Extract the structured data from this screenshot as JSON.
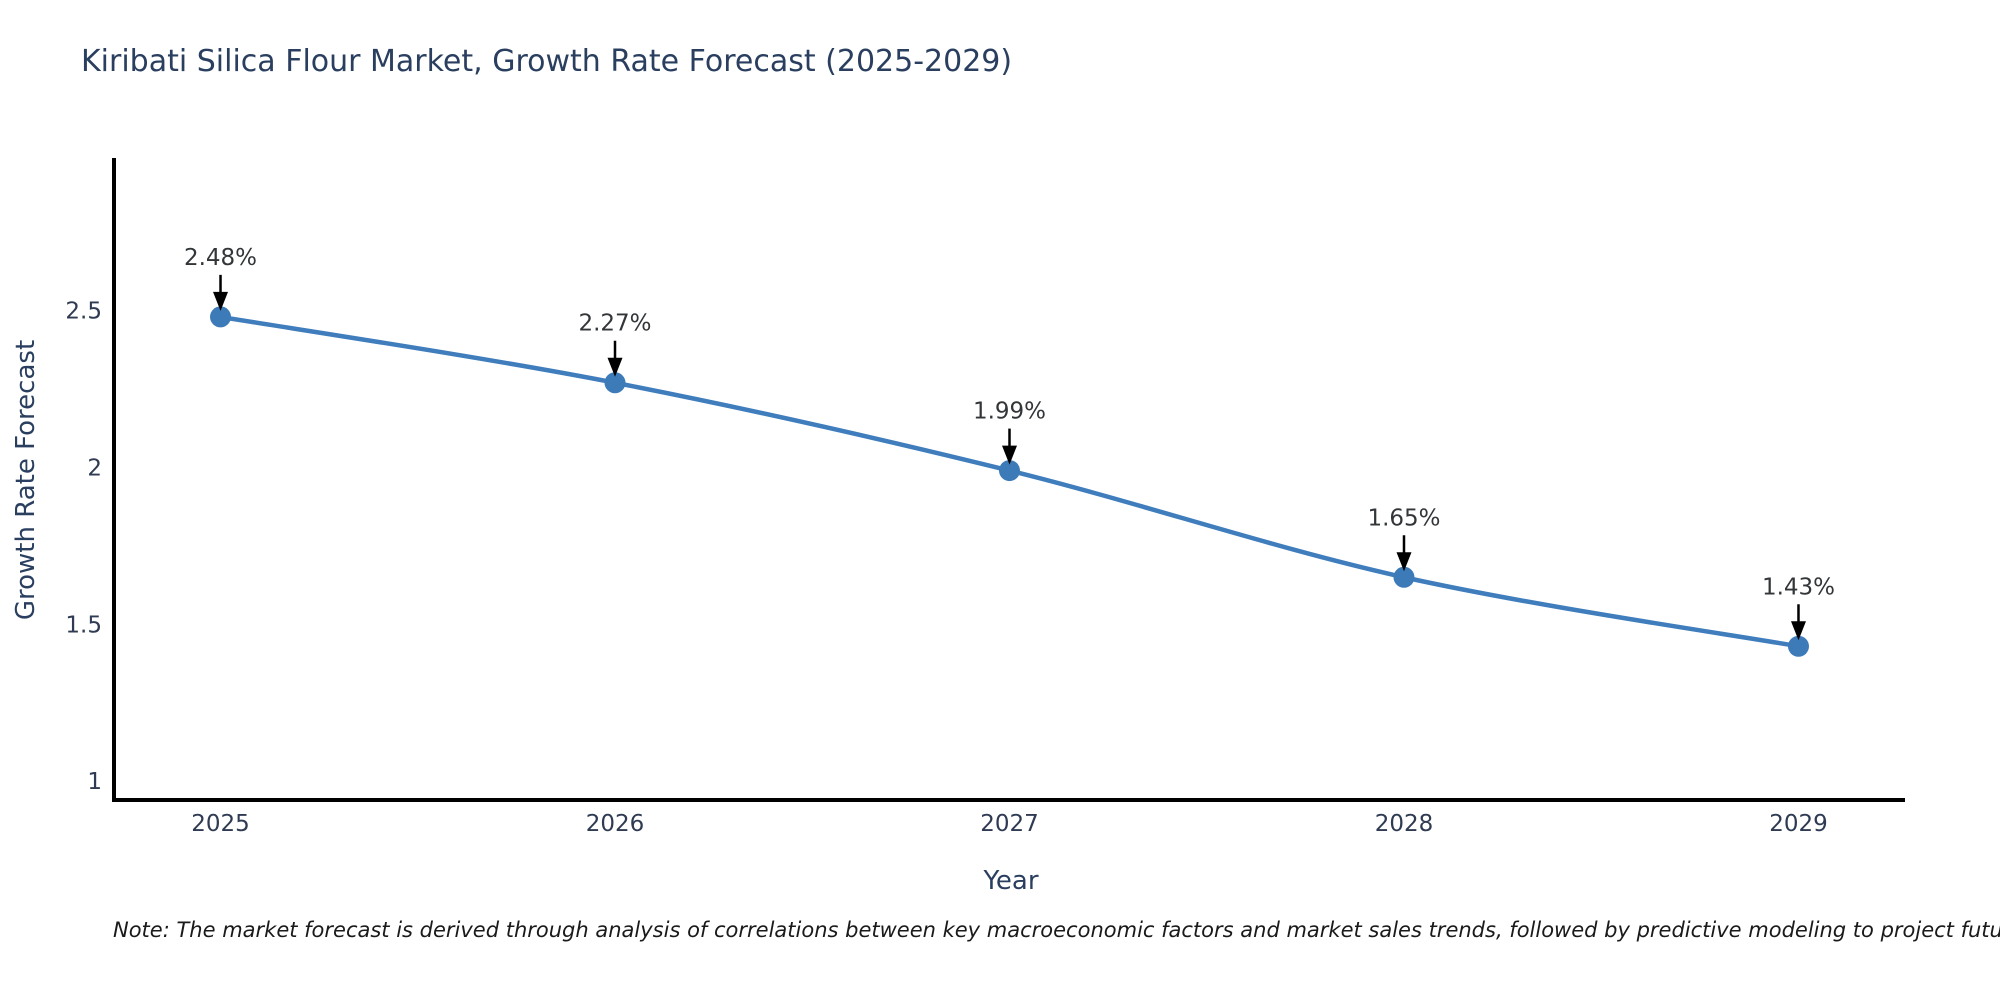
{
  "page": {
    "note": "Note: The market forecast is derived through analysis of correlations between key macroeconomic factors and market sales trends, followed by predictive modeling to project future sales"
  },
  "colors": {
    "line": "#3f7dbc",
    "marker": "#3d7ab8",
    "axis_line": "#000000",
    "arrow": "#000000",
    "title_text": "#2a3f5f",
    "tick_text": "#2f3b52",
    "annotation_text": "#333639",
    "background": "#ffffff"
  },
  "chart_data": {
    "type": "line",
    "title": "Kiribati Silica Flour Market, Growth Rate Forecast (2025-2029)",
    "xlabel": "Year",
    "ylabel": "Growth Rate Forecast",
    "x": [
      2025,
      2026,
      2027,
      2028,
      2029
    ],
    "y": [
      2.48,
      2.27,
      1.99,
      1.65,
      1.43
    ],
    "point_labels": [
      "2.48%",
      "2.27%",
      "1.99%",
      "1.65%",
      "1.43%"
    ],
    "x_tick_labels": [
      "2025",
      "2026",
      "2027",
      "2028",
      "2029"
    ],
    "y_ticks": [
      1,
      1.5,
      2,
      2.5
    ],
    "y_tick_labels": [
      "1",
      "1.5",
      "2",
      "2.5"
    ],
    "xlim": [
      2024.73,
      2029.27
    ],
    "ylim": [
      0.94,
      2.98
    ],
    "grid": false,
    "legend_position": "none",
    "line_shape": "spline",
    "markers": true,
    "annotation_style": "value label above each point with downward black arrow"
  }
}
